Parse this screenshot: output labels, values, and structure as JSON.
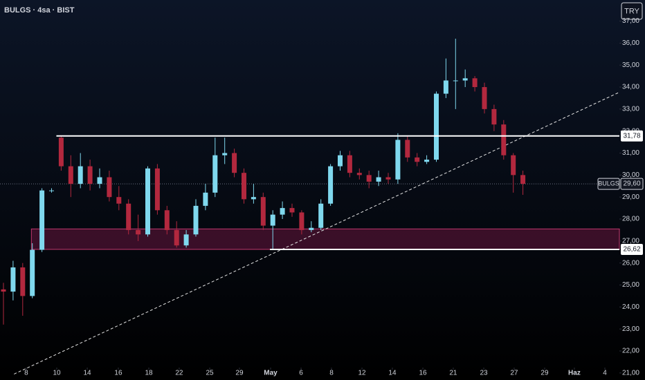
{
  "chart_data": {
    "type": "candlestick",
    "title": "BULGS · 4sa · BIST",
    "currency_button": "TRY",
    "bull_color": "#7fd8ee",
    "bear_color": "#b2283e",
    "x": [
      0,
      1,
      2,
      3,
      4,
      5,
      6,
      7,
      8,
      9,
      10,
      11,
      12,
      13,
      14,
      15,
      16,
      17,
      18,
      19,
      20,
      21,
      22,
      23,
      24,
      25,
      26,
      27,
      28,
      29,
      30,
      31,
      32,
      33,
      34,
      35,
      36,
      37,
      38,
      39,
      40,
      41,
      42,
      43,
      44,
      45,
      46,
      47,
      48,
      49,
      50,
      51,
      52,
      53,
      54
    ],
    "open": [
      24.8,
      24.7,
      25.8,
      24.5,
      26.6,
      29.3,
      31.7,
      30.4,
      29.6,
      30.4,
      29.6,
      29.9,
      29.0,
      28.7,
      27.5,
      27.3,
      30.3,
      28.4,
      27.5,
      26.8,
      27.3,
      28.6,
      29.2,
      30.9,
      31.0,
      30.1,
      28.9,
      29.0,
      27.7,
      28.2,
      28.5,
      28.3,
      27.5,
      27.6,
      28.7,
      30.4,
      30.9,
      30.1,
      30.0,
      29.7,
      29.9,
      29.8,
      31.6,
      30.8,
      30.6,
      30.7,
      33.7,
      34.3,
      34.3,
      34.4,
      34.0,
      33.0,
      32.3,
      30.9,
      30.0
    ],
    "high": [
      25.1,
      26.1,
      26.0,
      26.9,
      29.4,
      29.4,
      31.8,
      30.9,
      31.0,
      30.7,
      30.3,
      30.2,
      29.5,
      28.9,
      28.2,
      30.4,
      30.5,
      28.6,
      27.9,
      27.5,
      28.9,
      29.6,
      31.7,
      31.7,
      31.2,
      30.3,
      29.6,
      29.2,
      28.4,
      28.8,
      28.7,
      28.4,
      27.9,
      28.9,
      30.5,
      31.1,
      31.1,
      30.3,
      30.2,
      30.2,
      30.1,
      31.9,
      31.8,
      31.0,
      30.9,
      33.8,
      35.3,
      36.2,
      34.8,
      34.5,
      34.2,
      33.2,
      32.5,
      31.0,
      30.2
    ],
    "low": [
      23.2,
      24.3,
      23.6,
      24.4,
      26.5,
      29.2,
      30.2,
      29.0,
      29.4,
      29.3,
      29.4,
      28.8,
      28.4,
      27.3,
      27.0,
      27.2,
      28.2,
      27.3,
      26.7,
      26.7,
      27.2,
      28.4,
      29.0,
      30.5,
      29.9,
      28.7,
      28.7,
      27.5,
      26.6,
      28.0,
      28.1,
      27.3,
      27.4,
      27.5,
      28.6,
      30.2,
      29.9,
      29.8,
      29.4,
      29.5,
      29.6,
      29.6,
      30.6,
      30.4,
      30.5,
      30.6,
      33.5,
      33.0,
      34.0,
      33.8,
      32.8,
      32.0,
      30.7,
      29.2,
      29.1
    ],
    "close": [
      24.7,
      25.8,
      24.5,
      26.6,
      29.3,
      29.3,
      30.4,
      29.6,
      30.4,
      29.6,
      29.9,
      29.0,
      28.7,
      27.5,
      27.3,
      30.3,
      28.4,
      27.5,
      26.8,
      27.3,
      28.6,
      29.2,
      30.9,
      31.0,
      30.1,
      28.9,
      29.0,
      27.7,
      28.2,
      28.5,
      28.3,
      27.5,
      27.6,
      28.7,
      30.4,
      30.9,
      30.1,
      30.0,
      29.7,
      29.9,
      29.8,
      31.6,
      30.8,
      30.6,
      30.7,
      33.7,
      34.3,
      34.3,
      34.4,
      34.0,
      33.0,
      32.3,
      30.9,
      30.0,
      29.6
    ],
    "xlim": [
      -0.36,
      64.03
    ],
    "ylim": [
      20.68,
      37.96
    ],
    "yticks": [
      {
        "value": 21,
        "label": "21,00"
      },
      {
        "value": 22,
        "label": "22,00"
      },
      {
        "value": 23,
        "label": "23,00"
      },
      {
        "value": 24,
        "label": "24,00"
      },
      {
        "value": 25,
        "label": "25,00"
      },
      {
        "value": 26,
        "label": "26,00"
      },
      {
        "value": 27,
        "label": "27,00"
      },
      {
        "value": 28,
        "label": "28,00"
      },
      {
        "value": 29,
        "label": "29,00"
      },
      {
        "value": 30,
        "label": "30,00"
      },
      {
        "value": 31,
        "label": "31,00"
      },
      {
        "value": 32,
        "label": "32,00"
      },
      {
        "value": 33,
        "label": "33,00"
      },
      {
        "value": 34,
        "label": "34,00"
      },
      {
        "value": 35,
        "label": "35,00"
      },
      {
        "value": 36,
        "label": "36,00"
      },
      {
        "value": 37,
        "label": "37,00"
      }
    ],
    "xticks": [
      {
        "value": 2.37,
        "label": "8"
      },
      {
        "value": 5.54,
        "label": "10"
      },
      {
        "value": 8.71,
        "label": "14"
      },
      {
        "value": 11.94,
        "label": "16"
      },
      {
        "value": 15.11,
        "label": "18"
      },
      {
        "value": 18.27,
        "label": "22"
      },
      {
        "value": 21.44,
        "label": "25"
      },
      {
        "value": 24.53,
        "label": "29"
      },
      {
        "value": 27.77,
        "label": "May"
      },
      {
        "value": 30.94,
        "label": "6"
      },
      {
        "value": 34.1,
        "label": "8"
      },
      {
        "value": 37.27,
        "label": "12"
      },
      {
        "value": 40.43,
        "label": "14"
      },
      {
        "value": 43.6,
        "label": "16"
      },
      {
        "value": 46.76,
        "label": "21"
      },
      {
        "value": 49.93,
        "label": "23"
      },
      {
        "value": 53.09,
        "label": "27"
      },
      {
        "value": 56.26,
        "label": "29"
      },
      {
        "value": 59.35,
        "label": "Haz"
      },
      {
        "value": 62.52,
        "label": "4"
      }
    ],
    "levels": [
      {
        "value": 31.78,
        "label": "31,78",
        "x_start": 5.5
      },
      {
        "value": 26.62,
        "label": "26,62",
        "x_start": 27.7
      }
    ],
    "zone": {
      "x_start": 2.9,
      "y": [
        26.62,
        27.55
      ]
    },
    "trendline": {
      "x": [
        1.1,
        63.9
      ],
      "y": [
        20.95,
        33.74
      ]
    },
    "last_price": {
      "name": "BULGS",
      "value": 29.6,
      "label": "29,60"
    }
  }
}
